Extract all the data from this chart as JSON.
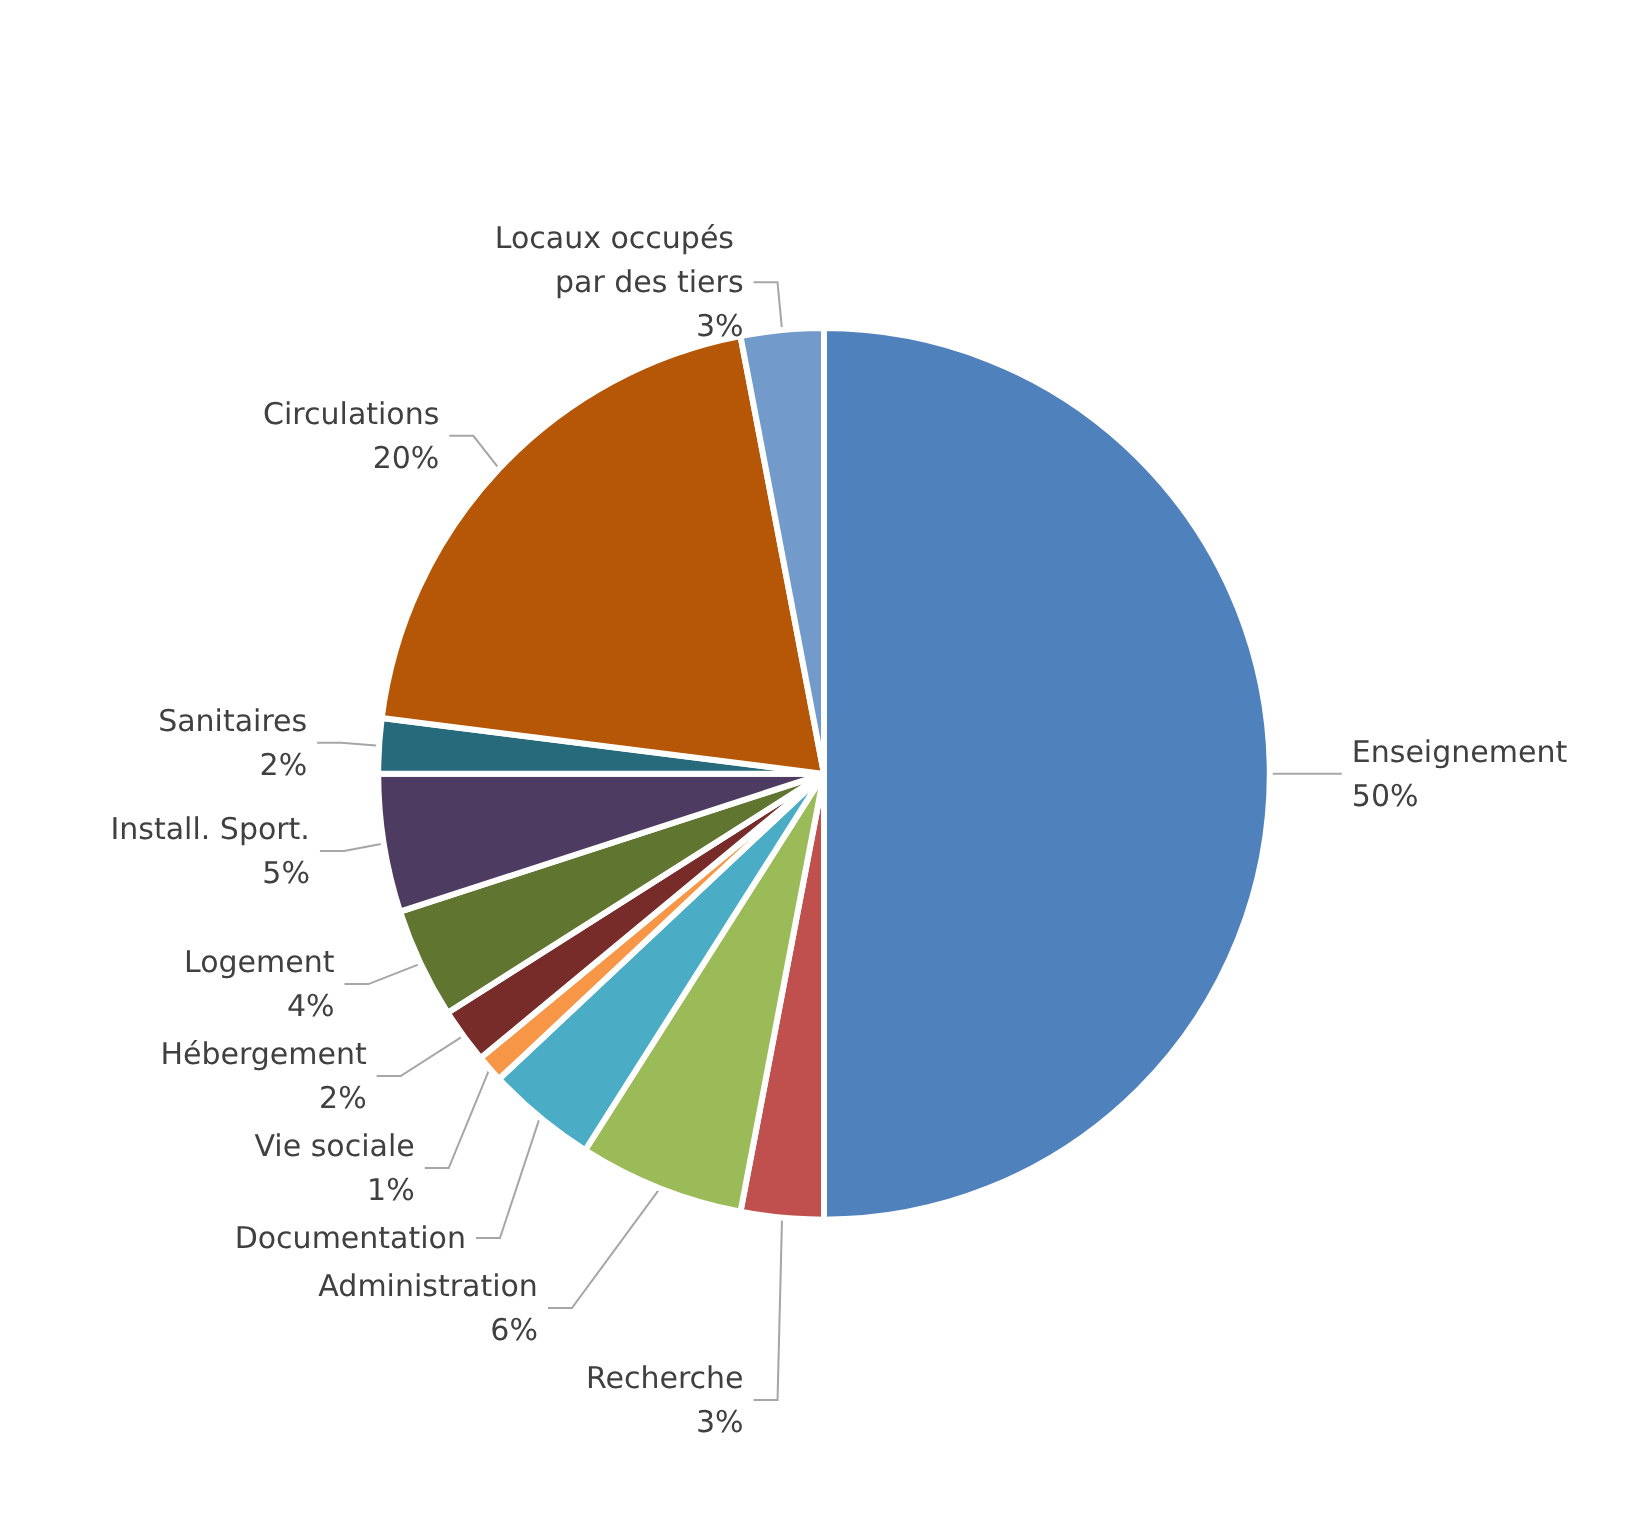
{
  "chart_data": {
    "type": "pie",
    "categories": [
      "Enseignement",
      "Recherche",
      "Administration",
      "Documentation",
      "Vie sociale",
      "Hébergement",
      "Logement",
      "Install. Sport.",
      "Sanitaires",
      "Circulations",
      "Locaux occupés par des tiers"
    ],
    "values": [
      50,
      3,
      6,
      4,
      1,
      2,
      4,
      5,
      2,
      20,
      3
    ],
    "value_labels": [
      "50%",
      "3%",
      "6%",
      null,
      "1%",
      "2%",
      "4%",
      "5%",
      "2%",
      "20%",
      "3%"
    ],
    "colors": [
      "#4f81bd",
      "#c0504d",
      "#9bbb59",
      "#4bacc6",
      "#f79646",
      "#772c2a",
      "#5f7530",
      "#4d3b62",
      "#276a7c",
      "#b65708",
      "#729aca"
    ],
    "legend": false
  }
}
